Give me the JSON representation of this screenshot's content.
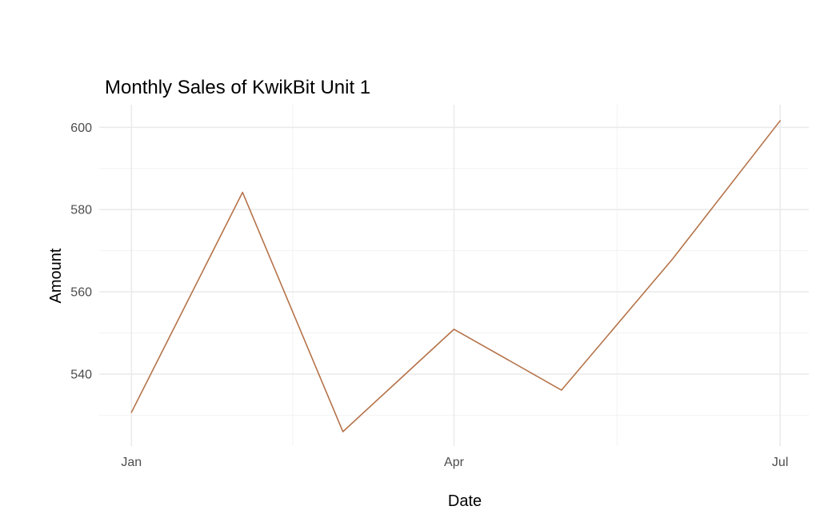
{
  "chart_data": {
    "type": "line",
    "title": "Monthly Sales of KwikBit Unit 1",
    "xlabel": "Date",
    "ylabel": "Amount",
    "x": [
      "2023-01-01",
      "2023-02-01",
      "2023-03-01",
      "2023-04-01",
      "2023-05-01",
      "2023-06-01",
      "2023-07-01"
    ],
    "series": [
      {
        "values": [
          530.7,
          584.2,
          526.0,
          550.9,
          536.1,
          568.0,
          601.6
        ],
        "color": "#b5734a"
      }
    ],
    "xticks": [
      {
        "label": "Jan",
        "x": "2023-01-01"
      },
      {
        "label": "Apr",
        "x": "2023-04-01"
      },
      {
        "label": "Jul",
        "x": "2023-07-01"
      }
    ],
    "yticks": [
      540,
      560,
      580,
      600
    ],
    "xlim": [
      "2022-12-23",
      "2023-07-09"
    ],
    "ylim": [
      522.5,
      605.5
    ],
    "grid": true,
    "legend": "none"
  }
}
